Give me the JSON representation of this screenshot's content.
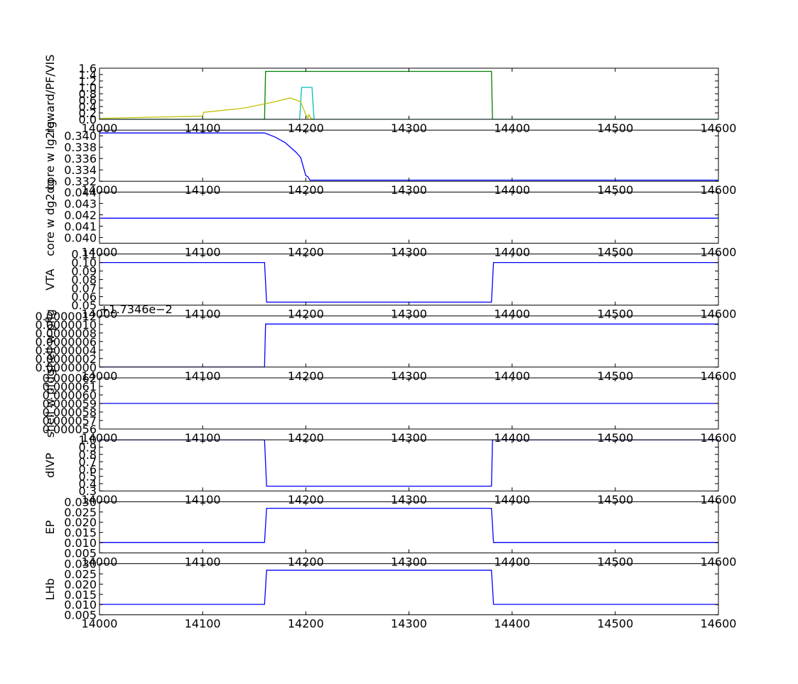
{
  "chart_data": [
    {
      "type": "line",
      "ylabel": "reward/PF/VIS",
      "xlim": [
        14000,
        14600
      ],
      "ylim": [
        0.0,
        1.6
      ],
      "x_ticks": [
        "14000",
        "14100",
        "14200",
        "14300",
        "14400",
        "14500",
        "14600"
      ],
      "y_ticks": [
        "0.0",
        "0.2",
        "0.4",
        "0.6",
        "0.8",
        "1.0",
        "1.2",
        "1.4",
        "1.6"
      ],
      "series": [
        {
          "color": "#008000",
          "x": [
            14000,
            14160,
            14161,
            14380,
            14381,
            14600
          ],
          "y": [
            0,
            0,
            1.5,
            1.5,
            0,
            0
          ]
        },
        {
          "color": "#00bfbf",
          "x": [
            14000,
            14194,
            14196,
            14206,
            14208,
            14600
          ],
          "y": [
            0,
            0,
            1.0,
            1.0,
            0,
            0
          ]
        },
        {
          "color": "#bfbf00",
          "x": [
            14000,
            14100,
            14101,
            14140,
            14170,
            14185,
            14195,
            14200,
            14202,
            14203,
            14205,
            14207
          ],
          "y": [
            0.03,
            0.1,
            0.22,
            0.35,
            0.55,
            0.67,
            0.55,
            0.15,
            0.03,
            0.15,
            0.03,
            0.0
          ]
        }
      ]
    },
    {
      "type": "line",
      "ylabel": "core w lg2lg",
      "xlim": [
        14000,
        14600
      ],
      "ylim": [
        0.332,
        0.341
      ],
      "x_ticks": [
        "14000",
        "14100",
        "14200",
        "14300",
        "14400",
        "14500",
        "14600"
      ],
      "y_ticks": [
        "0.332",
        "0.334",
        "0.336",
        "0.338",
        "0.340"
      ],
      "series": [
        {
          "color": "#0000ff",
          "x": [
            14000,
            14160,
            14170,
            14180,
            14190,
            14195,
            14200,
            14202,
            14204,
            14206,
            14600
          ],
          "y": [
            0.3405,
            0.3405,
            0.3398,
            0.3388,
            0.3372,
            0.3362,
            0.333,
            0.3328,
            0.3322,
            0.3322,
            0.3322
          ]
        }
      ]
    },
    {
      "type": "line",
      "ylabel": "core w dg2dg",
      "xlim": [
        14000,
        14600
      ],
      "ylim": [
        0.0395,
        0.044
      ],
      "x_ticks": [
        "14000",
        "14100",
        "14200",
        "14300",
        "14400",
        "14500",
        "14600"
      ],
      "y_ticks": [
        "0.040",
        "0.041",
        "0.042",
        "0.043",
        "0.044"
      ],
      "series": [
        {
          "color": "#0000ff",
          "x": [
            14000,
            14600
          ],
          "y": [
            0.0417,
            0.0417
          ]
        }
      ]
    },
    {
      "type": "line",
      "ylabel": "VTA",
      "xlim": [
        14000,
        14600
      ],
      "ylim": [
        0.05,
        0.11
      ],
      "x_ticks": [
        "14000",
        "14100",
        "14200",
        "14300",
        "14400",
        "14500",
        "14600"
      ],
      "y_ticks": [
        "0.05",
        "0.06",
        "0.07",
        "0.08",
        "0.09",
        "0.10",
        "0.11"
      ],
      "series": [
        {
          "color": "#0000ff",
          "x": [
            14000,
            14160,
            14162,
            14380,
            14382,
            14600
          ],
          "y": [
            0.1,
            0.1,
            0.0535,
            0.0535,
            0.1,
            0.1
          ]
        }
      ]
    },
    {
      "type": "line",
      "ylabel": "shell w pflg",
      "offset_label": "+1.7346e−2",
      "xlim": [
        14000,
        14600
      ],
      "ylim": [
        0.0,
        1.2e-06
      ],
      "x_ticks": [
        "14000",
        "14100",
        "14200",
        "14300",
        "14400",
        "14500",
        "14600"
      ],
      "y_ticks": [
        "0.0000000",
        "0.0000002",
        "0.0000004",
        "0.0000006",
        "0.0000008",
        "0.0000010",
        "0.0000012"
      ],
      "series": [
        {
          "color": "#0000ff",
          "x": [
            14000,
            14160,
            14161,
            14600
          ],
          "y": [
            0.0,
            0.0,
            1.01e-06,
            1.01e-06
          ]
        }
      ]
    },
    {
      "type": "line",
      "ylabel": "shell w pfdg",
      "xlim": [
        14000,
        14600
      ],
      "ylim": [
        5.6e-05,
        6.2e-05
      ],
      "x_ticks": [
        "14000",
        "14100",
        "14200",
        "14300",
        "14400",
        "14500",
        "14600"
      ],
      "y_ticks": [
        "0.000056",
        "0.000057",
        "0.000058",
        "0.000059",
        "0.000060",
        "0.000061",
        "0.000062"
      ],
      "series": [
        {
          "color": "#0000ff",
          "x": [
            14000,
            14600
          ],
          "y": [
            5.9e-05,
            5.9e-05
          ]
        }
      ]
    },
    {
      "type": "line",
      "ylabel": "dlVP",
      "xlim": [
        14000,
        14600
      ],
      "ylim": [
        0.3,
        1.0
      ],
      "x_ticks": [
        "14000",
        "14100",
        "14200",
        "14300",
        "14400",
        "14500",
        "14600"
      ],
      "y_ticks": [
        "0.3",
        "0.4",
        "0.5",
        "0.6",
        "0.7",
        "0.8",
        "0.9",
        "1.0"
      ],
      "series": [
        {
          "color": "#0000ff",
          "x": [
            14000,
            14160,
            14162,
            14380,
            14381,
            14600
          ],
          "y": [
            1.0,
            1.0,
            0.365,
            0.365,
            1.0,
            1.0
          ]
        }
      ]
    },
    {
      "type": "line",
      "ylabel": "EP",
      "xlim": [
        14000,
        14600
      ],
      "ylim": [
        0.005,
        0.03
      ],
      "x_ticks": [
        "14000",
        "14100",
        "14200",
        "14300",
        "14400",
        "14500",
        "14600"
      ],
      "y_ticks": [
        "0.005",
        "0.010",
        "0.015",
        "0.020",
        "0.025",
        "0.030"
      ],
      "series": [
        {
          "color": "#0000ff",
          "x": [
            14000,
            14160,
            14162,
            14380,
            14382,
            14600
          ],
          "y": [
            0.0101,
            0.0101,
            0.0268,
            0.0268,
            0.0101,
            0.0101
          ]
        }
      ]
    },
    {
      "type": "line",
      "ylabel": "LHb",
      "xlim": [
        14000,
        14600
      ],
      "ylim": [
        0.005,
        0.03
      ],
      "x_ticks": [
        "14000",
        "14100",
        "14200",
        "14300",
        "14400",
        "14500",
        "14600"
      ],
      "y_ticks": [
        "0.005",
        "0.010",
        "0.015",
        "0.020",
        "0.025",
        "0.030"
      ],
      "series": [
        {
          "color": "#0000ff",
          "x": [
            14000,
            14160,
            14162,
            14380,
            14382,
            14600
          ],
          "y": [
            0.0101,
            0.0101,
            0.0268,
            0.0268,
            0.0101,
            0.0101
          ]
        }
      ]
    }
  ]
}
